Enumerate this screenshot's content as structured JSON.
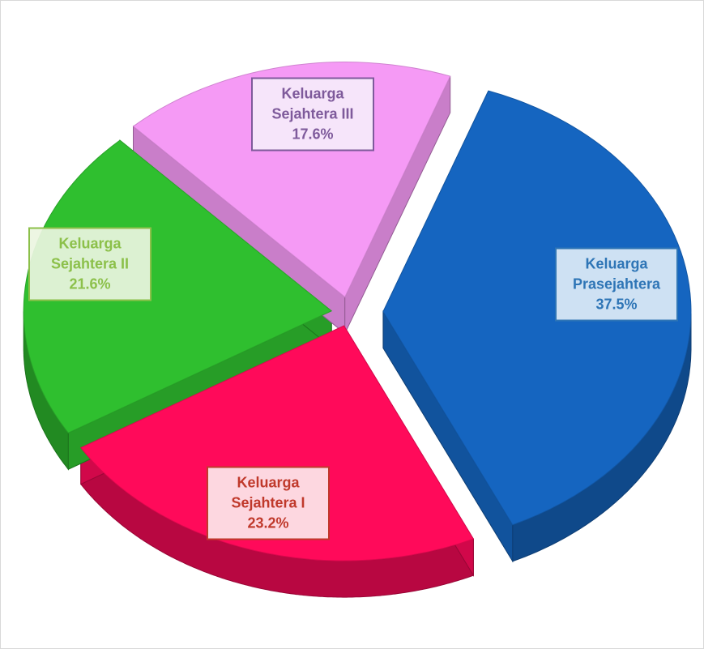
{
  "chart_data": {
    "type": "pie",
    "categories": [
      "Keluarga Prasejahtera",
      "Keluarga Sejahtera I",
      "Keluarga Sejahtera II",
      "Keluarga Sejahtera III"
    ],
    "values": [
      37.5,
      23.2,
      21.6,
      17.6
    ],
    "value_labels": [
      "37.5%",
      "23.2%",
      "21.6%",
      "17.6%"
    ],
    "colors": [
      "#1565c0",
      "#ff0a5a",
      "#2fbf2f",
      "#f59af5"
    ]
  }
}
